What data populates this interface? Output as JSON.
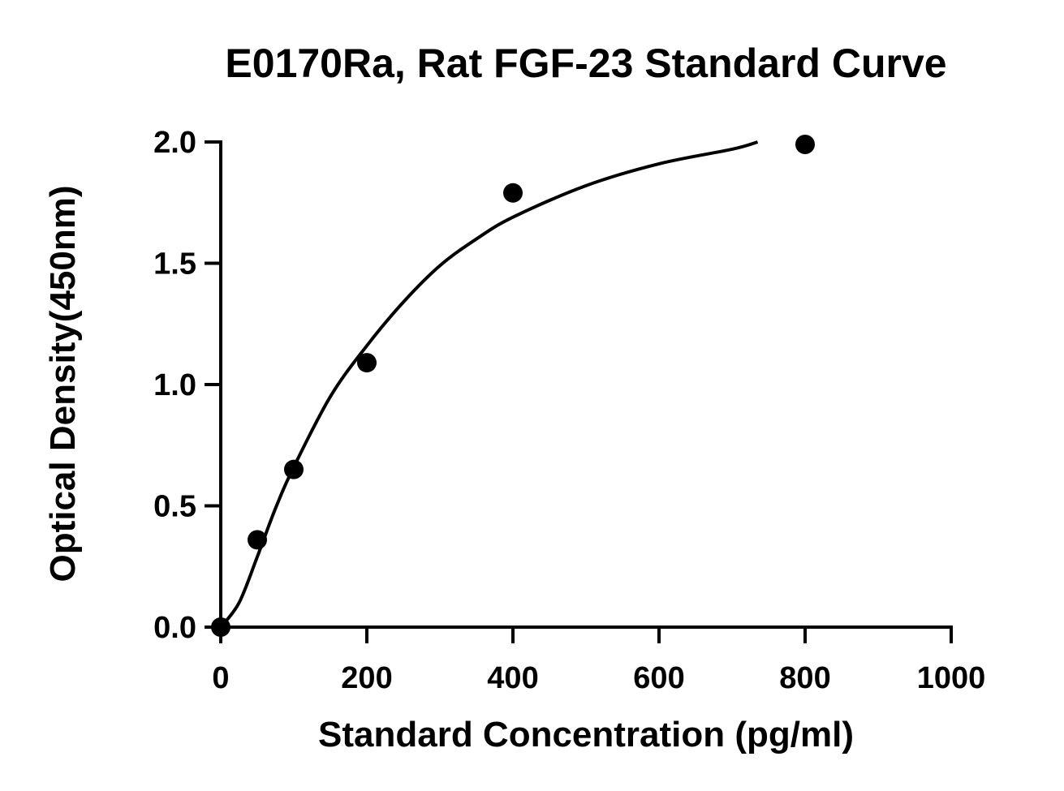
{
  "chart_data": {
    "type": "scatter",
    "title": "E0170Ra, Rat FGF-23 Standard Curve",
    "xlabel": "Standard Concentration (pg/ml)",
    "ylabel": "Optical Density(450nm)",
    "xlim": [
      0,
      1000
    ],
    "ylim": [
      0,
      2.0
    ],
    "x_ticks": [
      "0",
      "200",
      "400",
      "600",
      "800",
      "1000"
    ],
    "y_ticks": [
      "0.0",
      "0.5",
      "1.0",
      "1.5",
      "2.0"
    ],
    "grid": false,
    "series": [
      {
        "points": [
          {
            "x": 0,
            "y": 0.0
          },
          {
            "x": 50,
            "y": 0.36
          },
          {
            "x": 100,
            "y": 0.65
          },
          {
            "x": 200,
            "y": 1.09
          },
          {
            "x": 400,
            "y": 1.79
          },
          {
            "x": 800,
            "y": 1.99
          }
        ]
      }
    ],
    "fit_curve": {
      "x_max": 735,
      "points": [
        {
          "x": 0,
          "y": 0.0
        },
        {
          "x": 25,
          "y": 0.1
        },
        {
          "x": 50,
          "y": 0.29
        },
        {
          "x": 75,
          "y": 0.49
        },
        {
          "x": 100,
          "y": 0.66
        },
        {
          "x": 150,
          "y": 0.95
        },
        {
          "x": 200,
          "y": 1.16
        },
        {
          "x": 250,
          "y": 1.34
        },
        {
          "x": 300,
          "y": 1.49
        },
        {
          "x": 350,
          "y": 1.6
        },
        {
          "x": 400,
          "y": 1.69
        },
        {
          "x": 500,
          "y": 1.82
        },
        {
          "x": 600,
          "y": 1.91
        },
        {
          "x": 700,
          "y": 1.97
        },
        {
          "x": 735,
          "y": 2.0
        }
      ]
    },
    "colors": {
      "marker": "#000000",
      "line": "#000000",
      "background": "#ffffff"
    }
  }
}
